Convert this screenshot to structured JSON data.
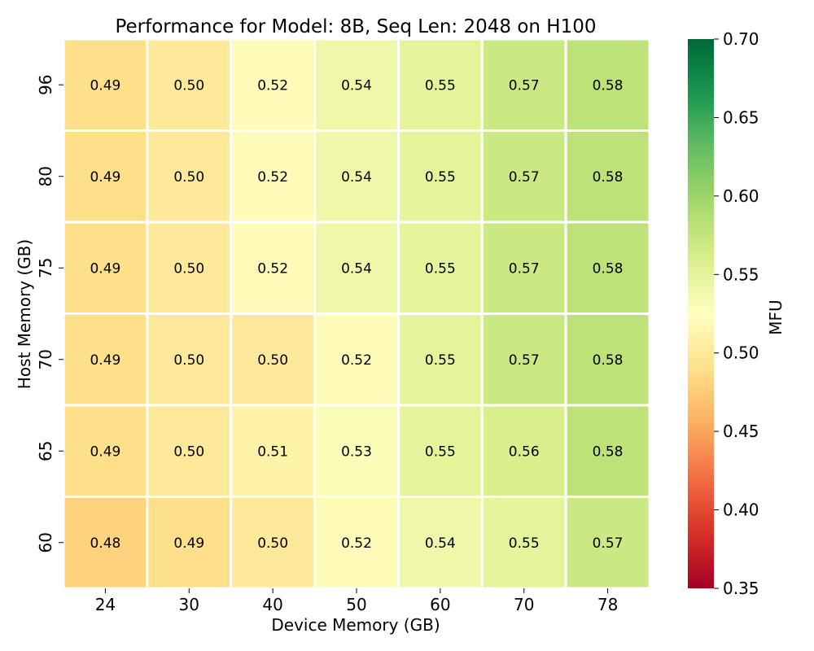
{
  "chart_data": {
    "type": "heatmap",
    "title": "Performance for Model: 8B, Seq Len: 2048 on H100",
    "xlabel": "Device Memory (GB)",
    "ylabel": "Host Memory (GB)",
    "x_categories": [
      "24",
      "30",
      "40",
      "50",
      "60",
      "70",
      "78"
    ],
    "y_categories": [
      "96",
      "80",
      "75",
      "70",
      "65",
      "60"
    ],
    "values": [
      [
        0.49,
        0.5,
        0.52,
        0.54,
        0.55,
        0.57,
        0.58
      ],
      [
        0.49,
        0.5,
        0.52,
        0.54,
        0.55,
        0.57,
        0.58
      ],
      [
        0.49,
        0.5,
        0.52,
        0.54,
        0.55,
        0.57,
        0.58
      ],
      [
        0.49,
        0.5,
        0.5,
        0.52,
        0.55,
        0.57,
        0.58
      ],
      [
        0.49,
        0.5,
        0.51,
        0.53,
        0.55,
        0.56,
        0.58
      ],
      [
        0.48,
        0.49,
        0.5,
        0.52,
        0.54,
        0.55,
        0.57
      ]
    ],
    "value_format": "0.00",
    "colorbar": {
      "label": "MFU",
      "min": 0.35,
      "max": 0.7,
      "ticks": [
        "0.35",
        "0.40",
        "0.45",
        "0.50",
        "0.55",
        "0.60",
        "0.65",
        "0.70"
      ],
      "colormap": "RdYlGn"
    },
    "cell_border_color": "#ffffff",
    "grid": false
  }
}
